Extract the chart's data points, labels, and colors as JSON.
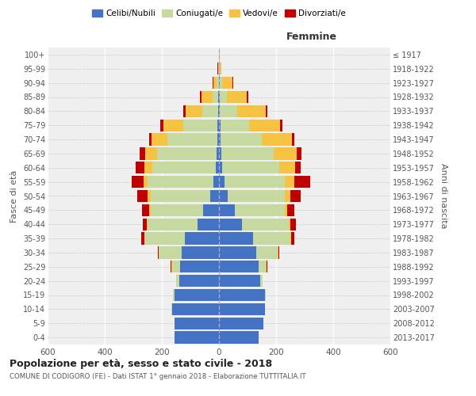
{
  "age_groups": [
    "0-4",
    "5-9",
    "10-14",
    "15-19",
    "20-24",
    "25-29",
    "30-34",
    "35-39",
    "40-44",
    "45-49",
    "50-54",
    "55-59",
    "60-64",
    "65-69",
    "70-74",
    "75-79",
    "80-84",
    "85-89",
    "90-94",
    "95-99",
    "100+"
  ],
  "birth_years": [
    "2013-2017",
    "2008-2012",
    "2003-2007",
    "1998-2002",
    "1993-1997",
    "1988-1992",
    "1983-1987",
    "1978-1982",
    "1973-1977",
    "1968-1972",
    "1963-1967",
    "1958-1962",
    "1953-1957",
    "1948-1952",
    "1943-1947",
    "1938-1942",
    "1933-1937",
    "1928-1932",
    "1923-1927",
    "1918-1922",
    "≤ 1917"
  ],
  "male": {
    "celibe": [
      155,
      155,
      165,
      155,
      140,
      135,
      130,
      120,
      75,
      55,
      30,
      20,
      12,
      8,
      5,
      5,
      3,
      2,
      0,
      0,
      0
    ],
    "coniugato": [
      0,
      0,
      2,
      5,
      10,
      30,
      80,
      140,
      175,
      185,
      210,
      230,
      220,
      210,
      175,
      120,
      55,
      20,
      8,
      2,
      0
    ],
    "vedovo": [
      0,
      0,
      0,
      0,
      0,
      2,
      0,
      2,
      2,
      5,
      10,
      15,
      30,
      40,
      55,
      70,
      60,
      40,
      12,
      2,
      0
    ],
    "divorziato": [
      0,
      0,
      0,
      0,
      0,
      2,
      5,
      10,
      15,
      25,
      35,
      40,
      30,
      20,
      10,
      10,
      8,
      5,
      2,
      2,
      0
    ]
  },
  "female": {
    "nubile": [
      140,
      155,
      160,
      160,
      145,
      140,
      130,
      120,
      80,
      55,
      30,
      20,
      12,
      8,
      6,
      5,
      4,
      3,
      2,
      0,
      0
    ],
    "coniugata": [
      0,
      0,
      2,
      4,
      8,
      25,
      75,
      130,
      165,
      175,
      200,
      210,
      200,
      185,
      145,
      100,
      60,
      25,
      10,
      2,
      0
    ],
    "vedova": [
      0,
      0,
      0,
      0,
      0,
      2,
      2,
      3,
      5,
      10,
      20,
      35,
      55,
      80,
      105,
      110,
      100,
      70,
      35,
      5,
      2
    ],
    "divorziata": [
      0,
      0,
      0,
      0,
      0,
      3,
      5,
      12,
      20,
      25,
      35,
      55,
      20,
      15,
      8,
      8,
      5,
      5,
      3,
      2,
      0
    ]
  },
  "colors": {
    "celibe": "#4472c4",
    "coniugato": "#c5d9a0",
    "vedovo": "#f5c242",
    "divorziato": "#c00000"
  },
  "legend_labels": [
    "Celibi/Nubili",
    "Coniugati/e",
    "Vedovi/e",
    "Divorziati/e"
  ],
  "title": "Popolazione per età, sesso e stato civile - 2018",
  "subtitle": "COMUNE DI CODIGORO (FE) - Dati ISTAT 1° gennaio 2018 - Elaborazione TUTTITALIA.IT",
  "xlabel_right": "Femmine",
  "ylabel_left": "Fasce di età",
  "ylabel_right": "Anni di nascita",
  "xlim": 600,
  "bg_color": "#ffffff",
  "plot_bg": "#efefef"
}
